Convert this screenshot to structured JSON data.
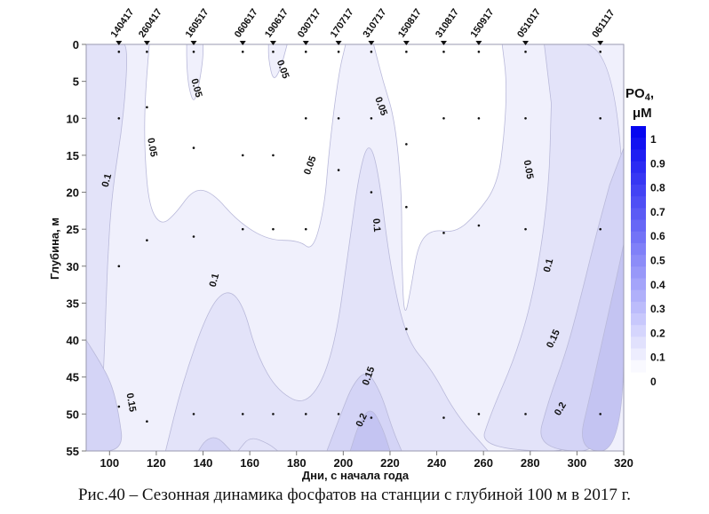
{
  "chart_data": {
    "type": "contour",
    "title": "",
    "xlabel": "Дни, с начала года",
    "ylabel": "Глубина, м",
    "xlim": [
      90,
      320
    ],
    "ylim": [
      55,
      0
    ],
    "x_ticks": [
      100,
      120,
      140,
      160,
      180,
      200,
      220,
      240,
      260,
      280,
      300,
      320
    ],
    "y_ticks": [
      0,
      5,
      10,
      15,
      20,
      25,
      30,
      35,
      40,
      45,
      50,
      55
    ],
    "stations": [
      {
        "label": "140417",
        "day": 104
      },
      {
        "label": "260417",
        "day": 116
      },
      {
        "label": "160517",
        "day": 136
      },
      {
        "label": "060617",
        "day": 157
      },
      {
        "label": "190617",
        "day": 170
      },
      {
        "label": "030717",
        "day": 184
      },
      {
        "label": "170717",
        "day": 198
      },
      {
        "label": "310717",
        "day": 212
      },
      {
        "label": "150817",
        "day": 227
      },
      {
        "label": "310817",
        "day": 243
      },
      {
        "label": "150917",
        "day": 258
      },
      {
        "label": "051017",
        "day": 278
      },
      {
        "label": "061117",
        "day": 310
      }
    ],
    "sample_points": [
      [
        104,
        1
      ],
      [
        104,
        10
      ],
      [
        104,
        30
      ],
      [
        104,
        49
      ],
      [
        116,
        1
      ],
      [
        116,
        8.5
      ],
      [
        116,
        26.5
      ],
      [
        116,
        51
      ],
      [
        136,
        1
      ],
      [
        136,
        14
      ],
      [
        136,
        26
      ],
      [
        136,
        50
      ],
      [
        157,
        1
      ],
      [
        157,
        15
      ],
      [
        157,
        25
      ],
      [
        157,
        50
      ],
      [
        170,
        1
      ],
      [
        170,
        15
      ],
      [
        170,
        25
      ],
      [
        170,
        50
      ],
      [
        184,
        1
      ],
      [
        184,
        10
      ],
      [
        184,
        25
      ],
      [
        184,
        50
      ],
      [
        198,
        1
      ],
      [
        198,
        10
      ],
      [
        198,
        17
      ],
      [
        198,
        50
      ],
      [
        212,
        1
      ],
      [
        212,
        10
      ],
      [
        212,
        20
      ],
      [
        212,
        50.5
      ],
      [
        227,
        1
      ],
      [
        227,
        13.5
      ],
      [
        227,
        22
      ],
      [
        227,
        38.5
      ],
      [
        243,
        1
      ],
      [
        243,
        10
      ],
      [
        243,
        25.5
      ],
      [
        243,
        50.5
      ],
      [
        258,
        1
      ],
      [
        258,
        10
      ],
      [
        258,
        24.5
      ],
      [
        258,
        50
      ],
      [
        278,
        1
      ],
      [
        278,
        10
      ],
      [
        278,
        25
      ],
      [
        278,
        50
      ],
      [
        310,
        1
      ],
      [
        310,
        10
      ],
      [
        310,
        25
      ],
      [
        310,
        50
      ]
    ],
    "contour_levels": [
      0.05,
      0.1,
      0.15,
      0.2
    ],
    "contour_labels": [
      {
        "text": "0.05",
        "day": 173,
        "depth": 3.5
      },
      {
        "text": "0.05",
        "day": 136,
        "depth": 6
      },
      {
        "text": "0.05",
        "day": 117,
        "depth": 14
      },
      {
        "text": "0.1",
        "day": 100,
        "depth": 18.5
      },
      {
        "text": "0.05",
        "day": 187,
        "depth": 16.5
      },
      {
        "text": "0.05",
        "day": 215,
        "depth": 8.5
      },
      {
        "text": "0.05",
        "day": 278,
        "depth": 17
      },
      {
        "text": "0.1",
        "day": 213,
        "depth": 24.5
      },
      {
        "text": "0.1",
        "day": 146,
        "depth": 32
      },
      {
        "text": "0.1",
        "day": 289,
        "depth": 30
      },
      {
        "text": "0.15",
        "day": 108,
        "depth": 48.5
      },
      {
        "text": "0.15",
        "day": 212,
        "depth": 45
      },
      {
        "text": "0.15",
        "day": 291,
        "depth": 40
      },
      {
        "text": "0.2",
        "day": 209,
        "depth": 51
      },
      {
        "text": "0.2",
        "day": 294,
        "depth": 49.5
      }
    ],
    "colorbar": {
      "title": "PO4,",
      "title_main": "PO",
      "title_sub": "4",
      "title_comma": ",",
      "units": "μM",
      "ticks": [
        "1",
        "0.9",
        "0.8",
        "0.7",
        "0.6",
        "0.5",
        "0.4",
        "0.3",
        "0.2",
        "0.1",
        "0"
      ],
      "range": [
        0,
        1.05
      ],
      "low_color": "#ffffff",
      "high_color": "#0000f0"
    },
    "caption": "Рис.40 – Сезонная динамика фосфатов на станции с глубиной 100 м в 2017 г."
  }
}
